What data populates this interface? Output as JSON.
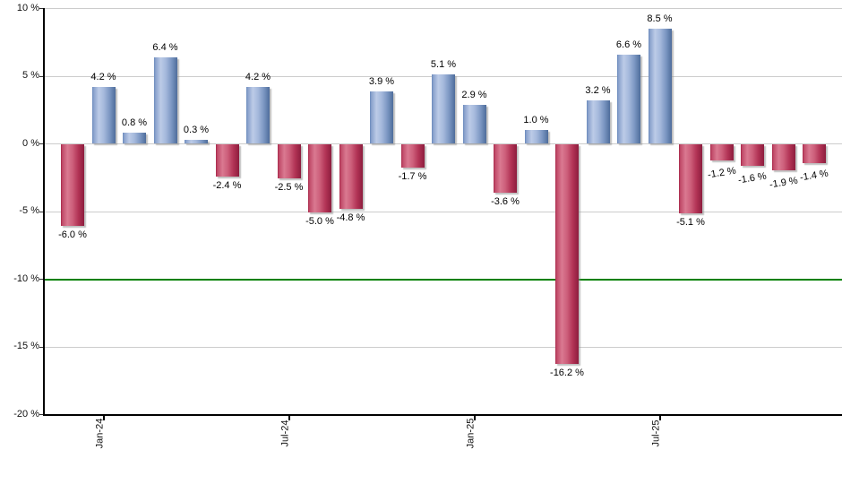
{
  "chart_data": {
    "type": "bar",
    "title": "",
    "xlabel": "",
    "ylabel": "",
    "ylim": [
      -20,
      10
    ],
    "grid": true,
    "legend": "none",
    "y_ticks": [
      {
        "value": 10,
        "label": "10 %"
      },
      {
        "value": 5,
        "label": "5 %"
      },
      {
        "value": 0,
        "label": "0 %"
      },
      {
        "value": -5,
        "label": "-5 %"
      },
      {
        "value": -10,
        "label": "-10 %"
      },
      {
        "value": -15,
        "label": "-15 %"
      },
      {
        "value": -20,
        "label": "-20 %"
      }
    ],
    "x_ticks": [
      {
        "bar_index": 1,
        "label": "Jan-24"
      },
      {
        "bar_index": 7,
        "label": "Jul-24"
      },
      {
        "bar_index": 13,
        "label": "Jan-25"
      },
      {
        "bar_index": 19,
        "label": "Jul-25"
      }
    ],
    "bars": [
      {
        "value": -6.0,
        "label": "-6.0 %"
      },
      {
        "value": 4.2,
        "label": "4.2 %"
      },
      {
        "value": 0.8,
        "label": "0.8 %"
      },
      {
        "value": 6.4,
        "label": "6.4 %"
      },
      {
        "value": 0.3,
        "label": "0.3 %"
      },
      {
        "value": -2.4,
        "label": "-2.4 %"
      },
      {
        "value": 4.2,
        "label": "4.2 %"
      },
      {
        "value": -2.5,
        "label": "-2.5 %"
      },
      {
        "value": -5.0,
        "label": "-5.0 %"
      },
      {
        "value": -4.8,
        "label": "-4.8 %"
      },
      {
        "value": 3.9,
        "label": "3.9 %"
      },
      {
        "value": -1.7,
        "label": "-1.7 %"
      },
      {
        "value": 5.1,
        "label": "5.1 %"
      },
      {
        "value": 2.9,
        "label": "2.9 %"
      },
      {
        "value": -3.6,
        "label": "-3.6 %"
      },
      {
        "value": 1.0,
        "label": "1.0 %"
      },
      {
        "value": -16.2,
        "label": "-16.2 %"
      },
      {
        "value": 3.2,
        "label": "3.2 %"
      },
      {
        "value": 6.6,
        "label": "6.6 %"
      },
      {
        "value": 8.5,
        "label": "8.5 %"
      },
      {
        "value": -5.1,
        "label": "-5.1 %"
      },
      {
        "value": -1.2,
        "label": "-1.2 %"
      },
      {
        "value": -1.6,
        "label": "-1.6 %"
      },
      {
        "value": -1.9,
        "label": "-1.9 %"
      },
      {
        "value": -1.4,
        "label": "-1.4 %"
      }
    ],
    "tilted_label_indices": [
      21,
      22,
      23,
      24
    ],
    "threshold_line": {
      "value": -10,
      "color": "#008000"
    },
    "colors": {
      "positive_dark": "#4e6d9b",
      "positive_mid": "#6888ba",
      "positive_light": "#bccbe7",
      "negative_dark": "#8d1d3e",
      "negative_mid": "#a62548",
      "negative_light": "#da7991",
      "threshold": "#008000",
      "gridline": "#cccccc",
      "axis": "#000000",
      "text": "#111111"
    }
  }
}
